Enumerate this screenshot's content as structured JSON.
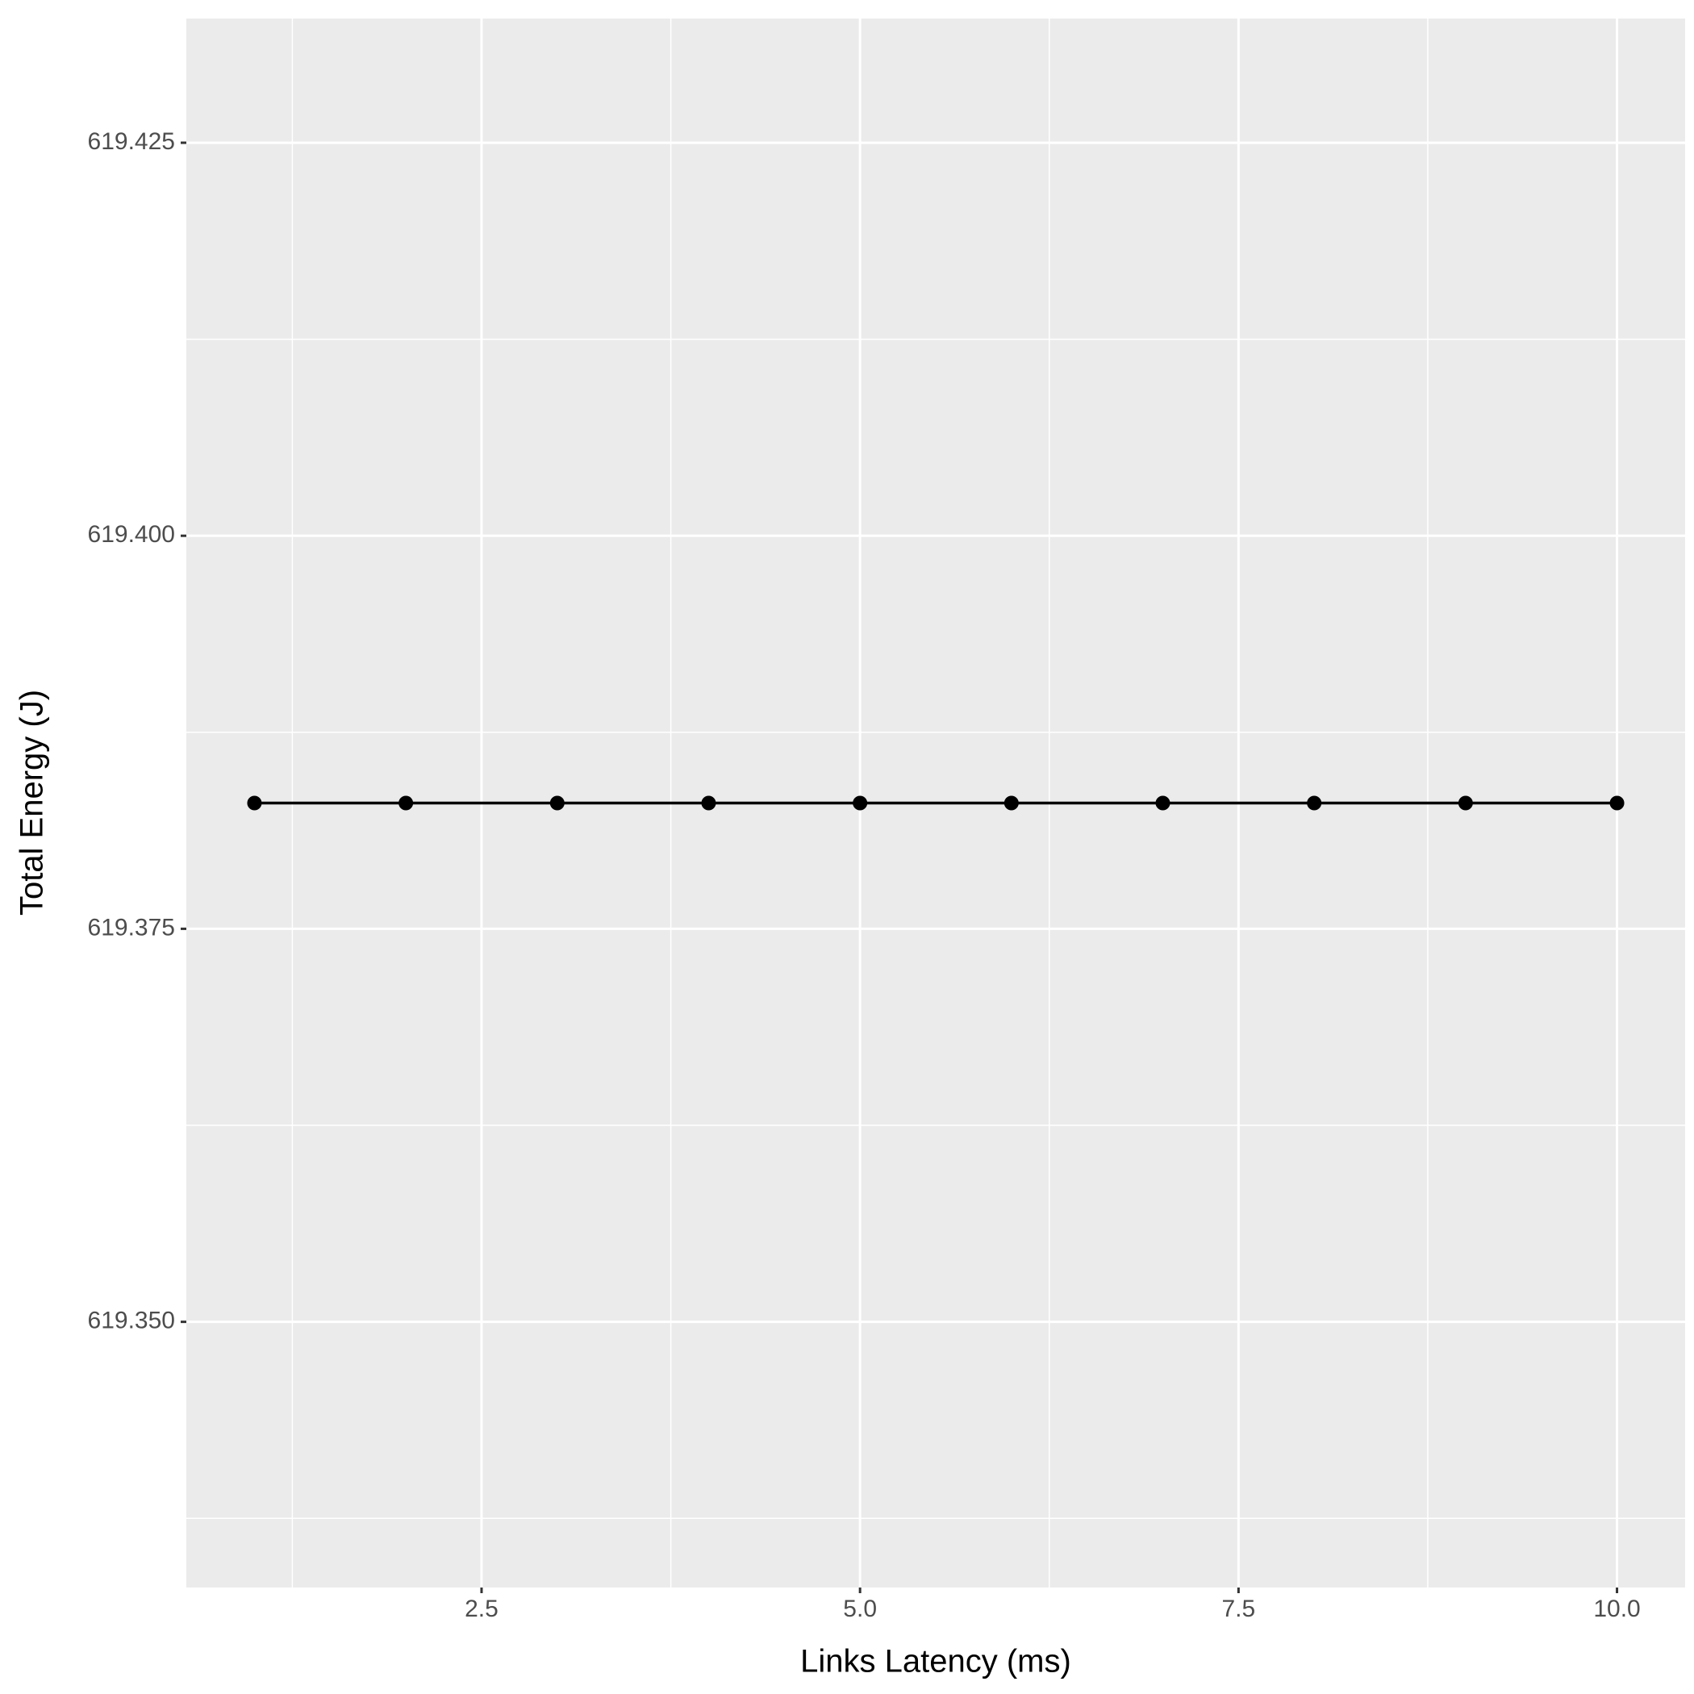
{
  "chart_data": {
    "type": "line",
    "x_label": "Links Latency (ms)",
    "y_label": "Total Energy (J)",
    "x": [
      1,
      2,
      3,
      4,
      5,
      6,
      7,
      8,
      9,
      10
    ],
    "values": [
      619.383,
      619.383,
      619.383,
      619.383,
      619.383,
      619.383,
      619.383,
      619.383,
      619.383,
      619.383
    ],
    "color": "#000000",
    "xlim": [
      0.55,
      10.45
    ],
    "xticks": [
      2.5,
      {
        "value": 5,
        "label": "5.0"
      },
      7.5,
      {
        "value": 10,
        "label": "10.0"
      }
    ],
    "xminorticks": [
      1.25,
      3.75,
      6.25,
      8.75
    ],
    "ylim": [
      619.3331,
      619.4329
    ],
    "yticks": [
      {
        "value": 619.35,
        "label": "619.350"
      },
      619.375,
      {
        "value": 619.4,
        "label": "619.400"
      },
      619.425
    ],
    "yminorticks": [
      619.3375,
      619.3625,
      619.3875,
      619.4125
    ],
    "grid": true,
    "markers": true
  }
}
